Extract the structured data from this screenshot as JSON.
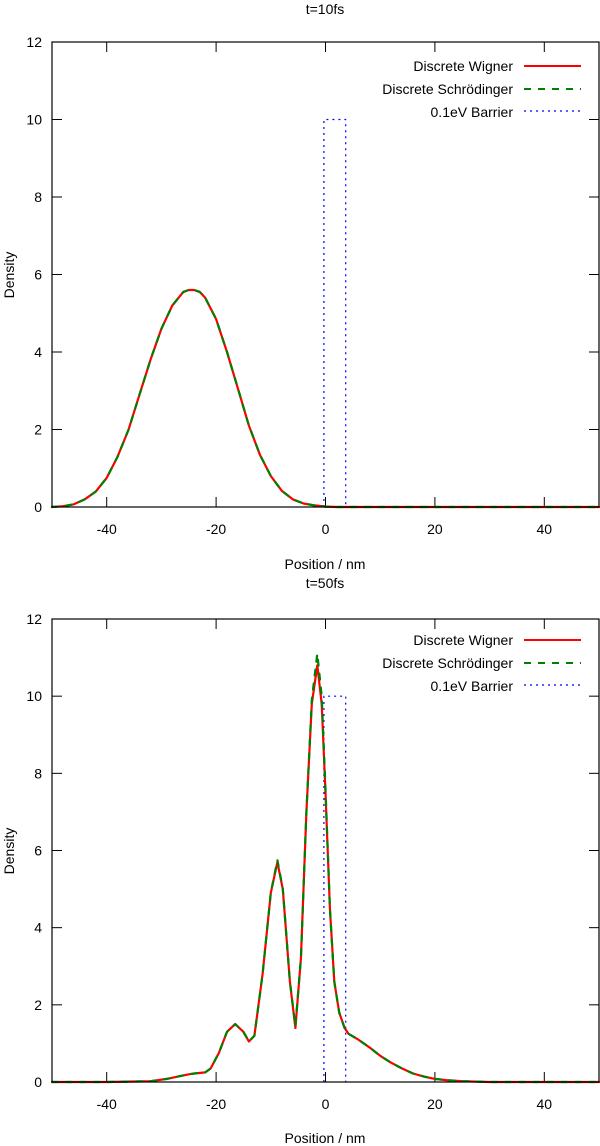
{
  "colors": {
    "wigner": "#ff0000",
    "schrodinger": "#008000",
    "barrier": "#0000ff",
    "axis": "#000000"
  },
  "chart_data": [
    {
      "type": "line",
      "title": "t=10fs",
      "xlabel": "Position / nm",
      "ylabel": "Density",
      "xlim": [
        -50,
        50
      ],
      "ylim": [
        0,
        12
      ],
      "xticks": [
        "-40",
        "-20",
        "0",
        "20",
        "40"
      ],
      "xtick_values": [
        -40,
        -20,
        0,
        20,
        40
      ],
      "yticks": [
        "0",
        "2",
        "4",
        "6",
        "8",
        "10",
        "12"
      ],
      "ytick_values": [
        0,
        2,
        4,
        6,
        8,
        10,
        12
      ],
      "grid": false,
      "legend_position": "top-right",
      "series": [
        {
          "name": "Discrete Wigner",
          "style": "solid",
          "x": [
            -50,
            -48,
            -46,
            -44,
            -42,
            -40,
            -38,
            -36,
            -34,
            -32,
            -30,
            -28,
            -26,
            -25,
            -24,
            -23,
            -22,
            -20,
            -18,
            -16,
            -14,
            -12,
            -10,
            -8,
            -6,
            -4,
            -2,
            0,
            2,
            5,
            10,
            20,
            30,
            40,
            50
          ],
          "y": [
            0.0,
            0.02,
            0.07,
            0.2,
            0.4,
            0.75,
            1.3,
            2.0,
            2.9,
            3.8,
            4.6,
            5.2,
            5.55,
            5.6,
            5.6,
            5.55,
            5.4,
            4.85,
            4.0,
            3.05,
            2.1,
            1.35,
            0.8,
            0.42,
            0.2,
            0.09,
            0.04,
            0.01,
            0.0,
            0.0,
            0.0,
            0.0,
            0.0,
            0.0,
            0.0
          ]
        },
        {
          "name": "Discrete Schrödinger",
          "style": "dashed",
          "x": [
            -50,
            -48,
            -46,
            -44,
            -42,
            -40,
            -38,
            -36,
            -34,
            -32,
            -30,
            -28,
            -26,
            -25,
            -24,
            -23,
            -22,
            -20,
            -18,
            -16,
            -14,
            -12,
            -10,
            -8,
            -6,
            -4,
            -2,
            0,
            2,
            5,
            10,
            20,
            30,
            40,
            50
          ],
          "y": [
            0.0,
            0.02,
            0.07,
            0.2,
            0.4,
            0.75,
            1.3,
            2.0,
            2.9,
            3.8,
            4.6,
            5.2,
            5.55,
            5.6,
            5.6,
            5.55,
            5.4,
            4.85,
            4.0,
            3.05,
            2.1,
            1.35,
            0.8,
            0.42,
            0.2,
            0.09,
            0.04,
            0.01,
            0.0,
            0.0,
            0.0,
            0.0,
            0.0,
            0.0,
            0.0
          ]
        },
        {
          "name": "0.1eV Barrier",
          "style": "dotted",
          "x": [
            -0.3,
            -0.3,
            3.7,
            3.7
          ],
          "y": [
            0,
            10,
            10,
            0
          ]
        }
      ]
    },
    {
      "type": "line",
      "title": "t=50fs",
      "xlabel": "Position / nm",
      "ylabel": "Density",
      "xlim": [
        -50,
        50
      ],
      "ylim": [
        0,
        12
      ],
      "xticks": [
        "-40",
        "-20",
        "0",
        "20",
        "40"
      ],
      "xtick_values": [
        -40,
        -20,
        0,
        20,
        40
      ],
      "yticks": [
        "0",
        "2",
        "4",
        "6",
        "8",
        "10",
        "12"
      ],
      "ytick_values": [
        0,
        2,
        4,
        6,
        8,
        10,
        12
      ],
      "grid": false,
      "legend_position": "top-right",
      "series": [
        {
          "name": "Discrete Wigner",
          "style": "solid",
          "x": [
            -50,
            -40,
            -32,
            -29,
            -27,
            -25,
            -24,
            -22,
            -21,
            -19.5,
            -18,
            -16.5,
            -15,
            -14,
            -13,
            -11.5,
            -10,
            -8.8,
            -7.8,
            -6.5,
            -5.5,
            -4.5,
            -3.5,
            -2.5,
            -1.5,
            -0.7,
            0,
            0.8,
            1.6,
            2.5,
            3.5,
            4.2,
            6,
            8,
            10,
            12,
            14,
            16,
            18,
            20,
            22,
            25,
            30,
            40,
            50
          ],
          "y": [
            0.0,
            0.0,
            0.02,
            0.08,
            0.14,
            0.2,
            0.22,
            0.25,
            0.35,
            0.75,
            1.3,
            1.5,
            1.3,
            1.05,
            1.2,
            2.8,
            4.9,
            5.7,
            5.0,
            2.6,
            1.4,
            3.2,
            7.0,
            9.8,
            10.8,
            9.8,
            7.5,
            4.5,
            2.6,
            1.8,
            1.4,
            1.25,
            1.1,
            0.9,
            0.68,
            0.5,
            0.35,
            0.22,
            0.14,
            0.08,
            0.05,
            0.02,
            0.0,
            0.0,
            0.0
          ]
        },
        {
          "name": "Discrete Schrödinger",
          "style": "dashed",
          "x": [
            -50,
            -40,
            -32,
            -29,
            -27,
            -25,
            -24,
            -22,
            -21,
            -19.5,
            -18,
            -16.5,
            -15,
            -14,
            -13,
            -11.5,
            -10,
            -8.8,
            -7.8,
            -6.5,
            -5.5,
            -4.5,
            -3.5,
            -2.5,
            -1.5,
            -0.7,
            0,
            0.8,
            1.6,
            2.5,
            3.5,
            4.2,
            6,
            8,
            10,
            12,
            14,
            16,
            18,
            20,
            22,
            25,
            30,
            40,
            50
          ],
          "y": [
            0.0,
            0.0,
            0.02,
            0.08,
            0.14,
            0.2,
            0.22,
            0.25,
            0.35,
            0.75,
            1.3,
            1.5,
            1.3,
            1.05,
            1.2,
            2.8,
            4.9,
            5.75,
            5.0,
            2.6,
            1.45,
            3.2,
            7.0,
            9.9,
            11.1,
            10.0,
            7.6,
            4.5,
            2.6,
            1.8,
            1.4,
            1.25,
            1.1,
            0.9,
            0.68,
            0.5,
            0.35,
            0.22,
            0.14,
            0.08,
            0.05,
            0.02,
            0.0,
            0.0,
            0.0
          ]
        },
        {
          "name": "0.1eV Barrier",
          "style": "dotted",
          "x": [
            -0.3,
            -0.3,
            3.7,
            3.7
          ],
          "y": [
            0,
            10,
            10,
            0
          ]
        }
      ]
    }
  ]
}
